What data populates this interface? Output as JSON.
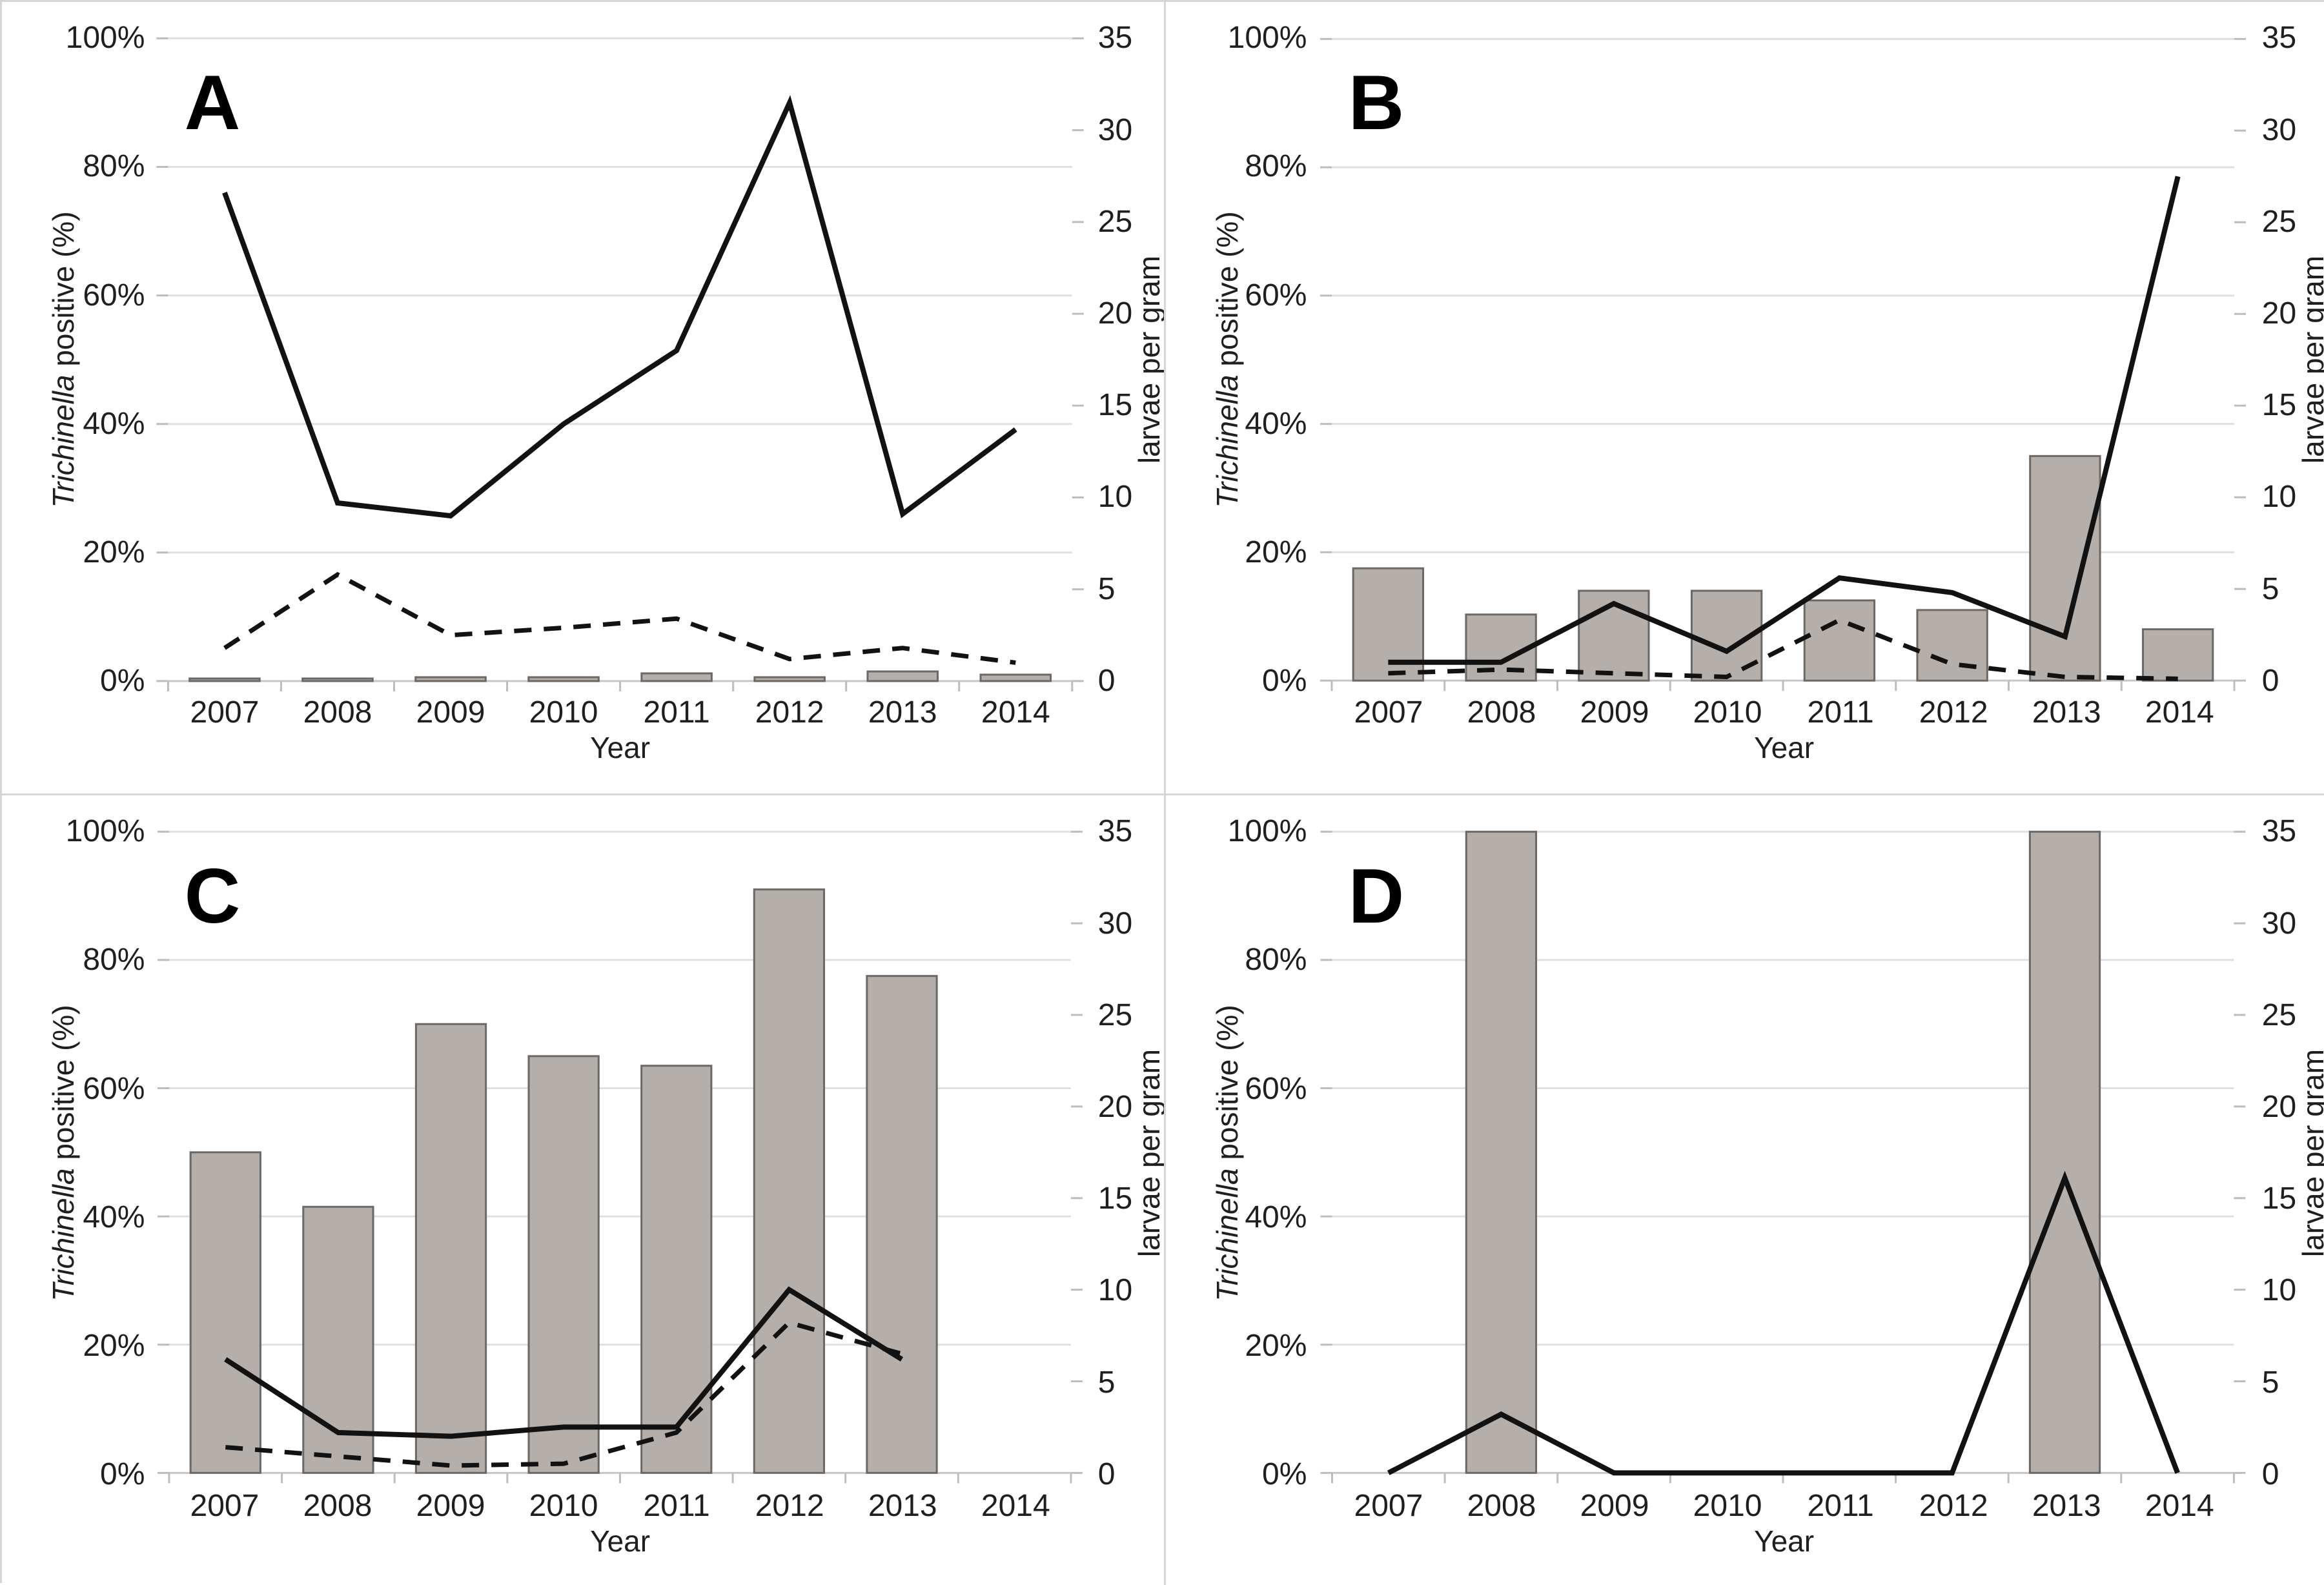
{
  "figure": {
    "years": [
      "2007",
      "2008",
      "2009",
      "2010",
      "2011",
      "2012",
      "2013",
      "2014"
    ],
    "x_axis": {
      "title": "Year"
    },
    "left_axis": {
      "title_italic": "Trichinella",
      "title_rest": " positive (%)",
      "ticks": [
        "100%",
        "80%",
        "60%",
        "40%",
        "20%",
        "0%"
      ],
      "min": 0,
      "max": 100
    },
    "right_axis": {
      "title": "larvae per gram",
      "ticks": [
        "35",
        "30",
        "25",
        "20",
        "15",
        "10",
        "5",
        "0"
      ],
      "min": 0,
      "max": 35
    },
    "colors": {
      "bar_fill": "#b4afab",
      "bar_border": "#6b6865",
      "line": "#121212",
      "gridline": "#e0e0e0",
      "axis_line": "#c6c6c6",
      "tick_mark": "#bdbdbd",
      "text": "#1f1f1f",
      "frame": "#d6d6d6",
      "background": "#ffffff"
    }
  },
  "chart_data": [
    {
      "label": "A",
      "type": "bar+line",
      "categories": [
        "2007",
        "2008",
        "2009",
        "2010",
        "2011",
        "2012",
        "2013",
        "2014"
      ],
      "xlabel": "Year",
      "ylabel_left": "Trichinella positive (%)",
      "ylabel_right": "larvae per gram",
      "ylim_left": [
        0,
        100
      ],
      "ylim_right": [
        0,
        35
      ],
      "grid": true,
      "legend": "none",
      "series": [
        {
          "name": "Trichinella positive (%)",
          "type": "bar",
          "axis": "left",
          "values": [
            0.4,
            0.4,
            0.6,
            0.6,
            1.2,
            0.6,
            1.5,
            1.0
          ]
        },
        {
          "name": "larvae per gram (solid line)",
          "type": "line",
          "style": "solid",
          "axis": "right",
          "values": [
            26.6,
            9.7,
            9.0,
            14.0,
            18.0,
            31.5,
            9.1,
            13.7
          ]
        },
        {
          "name": "larvae per gram (dashed line)",
          "type": "line",
          "style": "dashed",
          "axis": "right",
          "values": [
            1.8,
            5.8,
            2.5,
            2.9,
            3.4,
            1.2,
            1.8,
            1.0
          ]
        }
      ]
    },
    {
      "label": "B",
      "type": "bar+line",
      "categories": [
        "2007",
        "2008",
        "2009",
        "2010",
        "2011",
        "2012",
        "2013",
        "2014"
      ],
      "xlabel": "Year",
      "ylabel_left": "Trichinella positive (%)",
      "ylabel_right": "larvae per gram",
      "ylim_left": [
        0,
        100
      ],
      "ylim_right": [
        0,
        35
      ],
      "grid": true,
      "legend": "none",
      "series": [
        {
          "name": "Trichinella positive (%)",
          "type": "bar",
          "axis": "left",
          "values": [
            17.5,
            10.3,
            14.0,
            14.0,
            12.5,
            11.0,
            35.0,
            8.0
          ]
        },
        {
          "name": "larvae per gram (solid line)",
          "type": "line",
          "style": "solid",
          "axis": "right",
          "values": [
            1.0,
            1.0,
            4.2,
            1.6,
            5.6,
            4.8,
            2.4,
            27.5
          ]
        },
        {
          "name": "larvae per gram (dashed line)",
          "type": "line",
          "style": "dashed",
          "axis": "right",
          "values": [
            0.4,
            0.6,
            0.4,
            0.2,
            3.3,
            0.9,
            0.2,
            0.1
          ]
        }
      ]
    },
    {
      "label": "C",
      "type": "bar+line",
      "categories": [
        "2007",
        "2008",
        "2009",
        "2010",
        "2011",
        "2012",
        "2013",
        "2014"
      ],
      "xlabel": "Year",
      "ylabel_left": "Trichinella positive (%)",
      "ylabel_right": "larvae per gram",
      "ylim_left": [
        0,
        100
      ],
      "ylim_right": [
        0,
        35
      ],
      "grid": true,
      "legend": "none",
      "series": [
        {
          "name": "Trichinella positive (%)",
          "type": "bar",
          "axis": "left",
          "values": [
            50.0,
            41.5,
            70.0,
            65.0,
            63.5,
            91.0,
            77.5,
            0
          ]
        },
        {
          "name": "larvae per gram (solid line)",
          "type": "line",
          "style": "solid",
          "axis": "right",
          "values": [
            6.2,
            2.2,
            2.0,
            2.5,
            2.5,
            10.0,
            6.2,
            null
          ]
        },
        {
          "name": "larvae per gram (dashed line)",
          "type": "line",
          "style": "dashed",
          "axis": "right",
          "values": [
            1.4,
            0.9,
            0.4,
            0.5,
            2.2,
            8.2,
            6.5,
            null
          ]
        }
      ]
    },
    {
      "label": "D",
      "type": "bar+line",
      "categories": [
        "2007",
        "2008",
        "2009",
        "2010",
        "2011",
        "2012",
        "2013",
        "2014"
      ],
      "xlabel": "Year",
      "ylabel_left": "Trichinella positive (%)",
      "ylabel_right": "larvae per gram",
      "ylim_left": [
        0,
        100
      ],
      "ylim_right": [
        0,
        35
      ],
      "grid": true,
      "legend": "none",
      "series": [
        {
          "name": "Trichinella positive (%)",
          "type": "bar",
          "axis": "left",
          "values": [
            0,
            100,
            0,
            0,
            0,
            0,
            100,
            0
          ]
        },
        {
          "name": "larvae per gram (solid line)",
          "type": "line",
          "style": "solid",
          "axis": "right",
          "values": [
            0,
            3.2,
            0,
            0,
            0,
            0,
            16.1,
            0
          ]
        }
      ]
    }
  ]
}
